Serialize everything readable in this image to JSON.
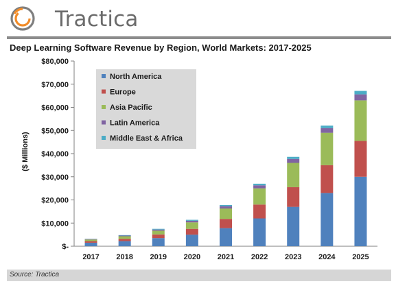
{
  "brand": {
    "name": "Tractica"
  },
  "source": "Source: Tractica",
  "chart_data": {
    "type": "bar",
    "stacked": true,
    "title": "Deep Learning Software Revenue by Region, World Markets: 2017-2025",
    "xlabel": "",
    "ylabel": "($ Millions)",
    "ylim": [
      0,
      80000
    ],
    "yticks": [
      0,
      10000,
      20000,
      30000,
      40000,
      50000,
      60000,
      70000,
      80000
    ],
    "ytick_labels": [
      "$-",
      "$10,000",
      "$20,000",
      "$30,000",
      "$40,000",
      "$50,000",
      "$60,000",
      "$70,000",
      "$80,000"
    ],
    "grid": false,
    "legend_position": "top-left",
    "categories": [
      "2017",
      "2018",
      "2019",
      "2020",
      "2021",
      "2022",
      "2023",
      "2024",
      "2025"
    ],
    "series": [
      {
        "name": "North America",
        "color": "#4f81bd",
        "values": [
          1500,
          2200,
          3500,
          5000,
          7800,
          12000,
          17000,
          23000,
          30000
        ]
      },
      {
        "name": "Europe",
        "color": "#c0504d",
        "values": [
          700,
          1000,
          1600,
          2500,
          4000,
          6000,
          8500,
          12000,
          15500
        ]
      },
      {
        "name": "Asia Pacific",
        "color": "#9bbb59",
        "values": [
          700,
          1100,
          1600,
          2800,
          4500,
          7000,
          10500,
          14000,
          17500
        ]
      },
      {
        "name": "Latin America",
        "color": "#8064a2",
        "values": [
          200,
          300,
          500,
          700,
          1000,
          1300,
          1700,
          2000,
          2600
        ]
      },
      {
        "name": "Middle East & Africa",
        "color": "#4bacc6",
        "values": [
          100,
          200,
          300,
          400,
          500,
          700,
          900,
          1100,
          1500
        ]
      }
    ]
  }
}
